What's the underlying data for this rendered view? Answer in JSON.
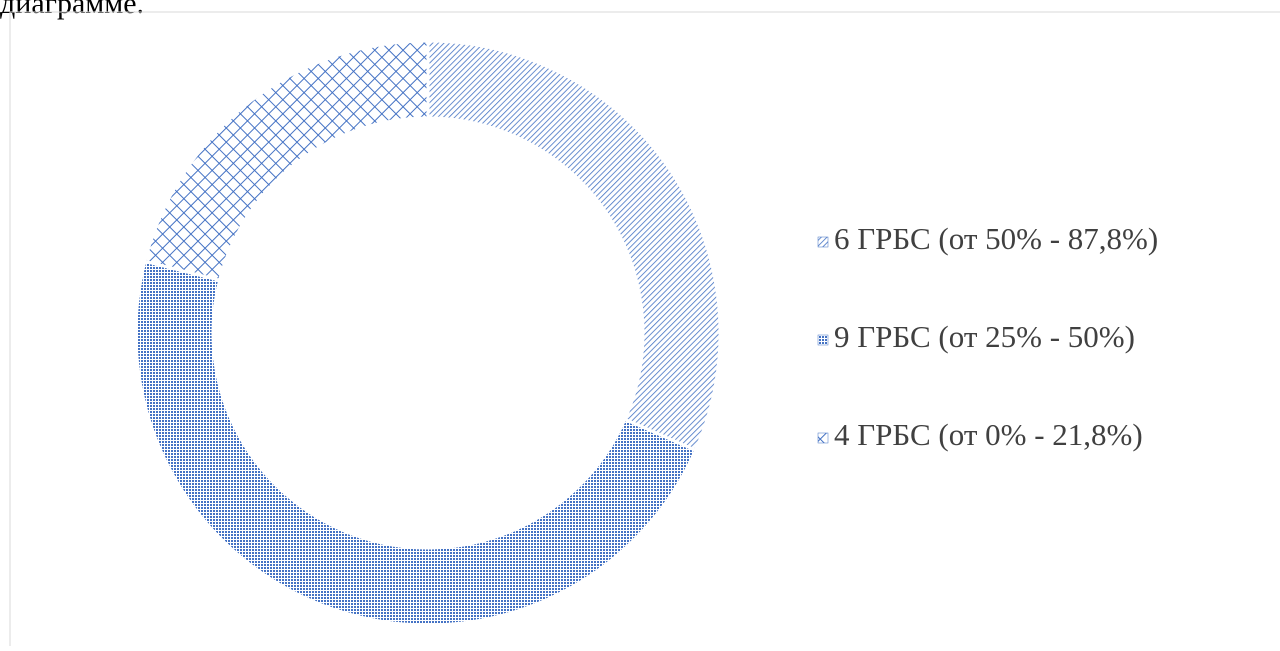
{
  "document": {
    "text": "диаграмме."
  },
  "chart_data": {
    "type": "donut",
    "categories": [
      "6 ГРБС (от 50% - 87,8%)",
      "9 ГРБС (от 25% - 50%)",
      "4 ГРБС (от 0% - 21,8%)"
    ],
    "values": [
      6,
      9,
      4
    ],
    "colors": [
      "#4472c4",
      "#4472c4",
      "#4472c4"
    ],
    "patterns": [
      "diagonal",
      "dots",
      "crosshatch"
    ],
    "legend": "right"
  }
}
